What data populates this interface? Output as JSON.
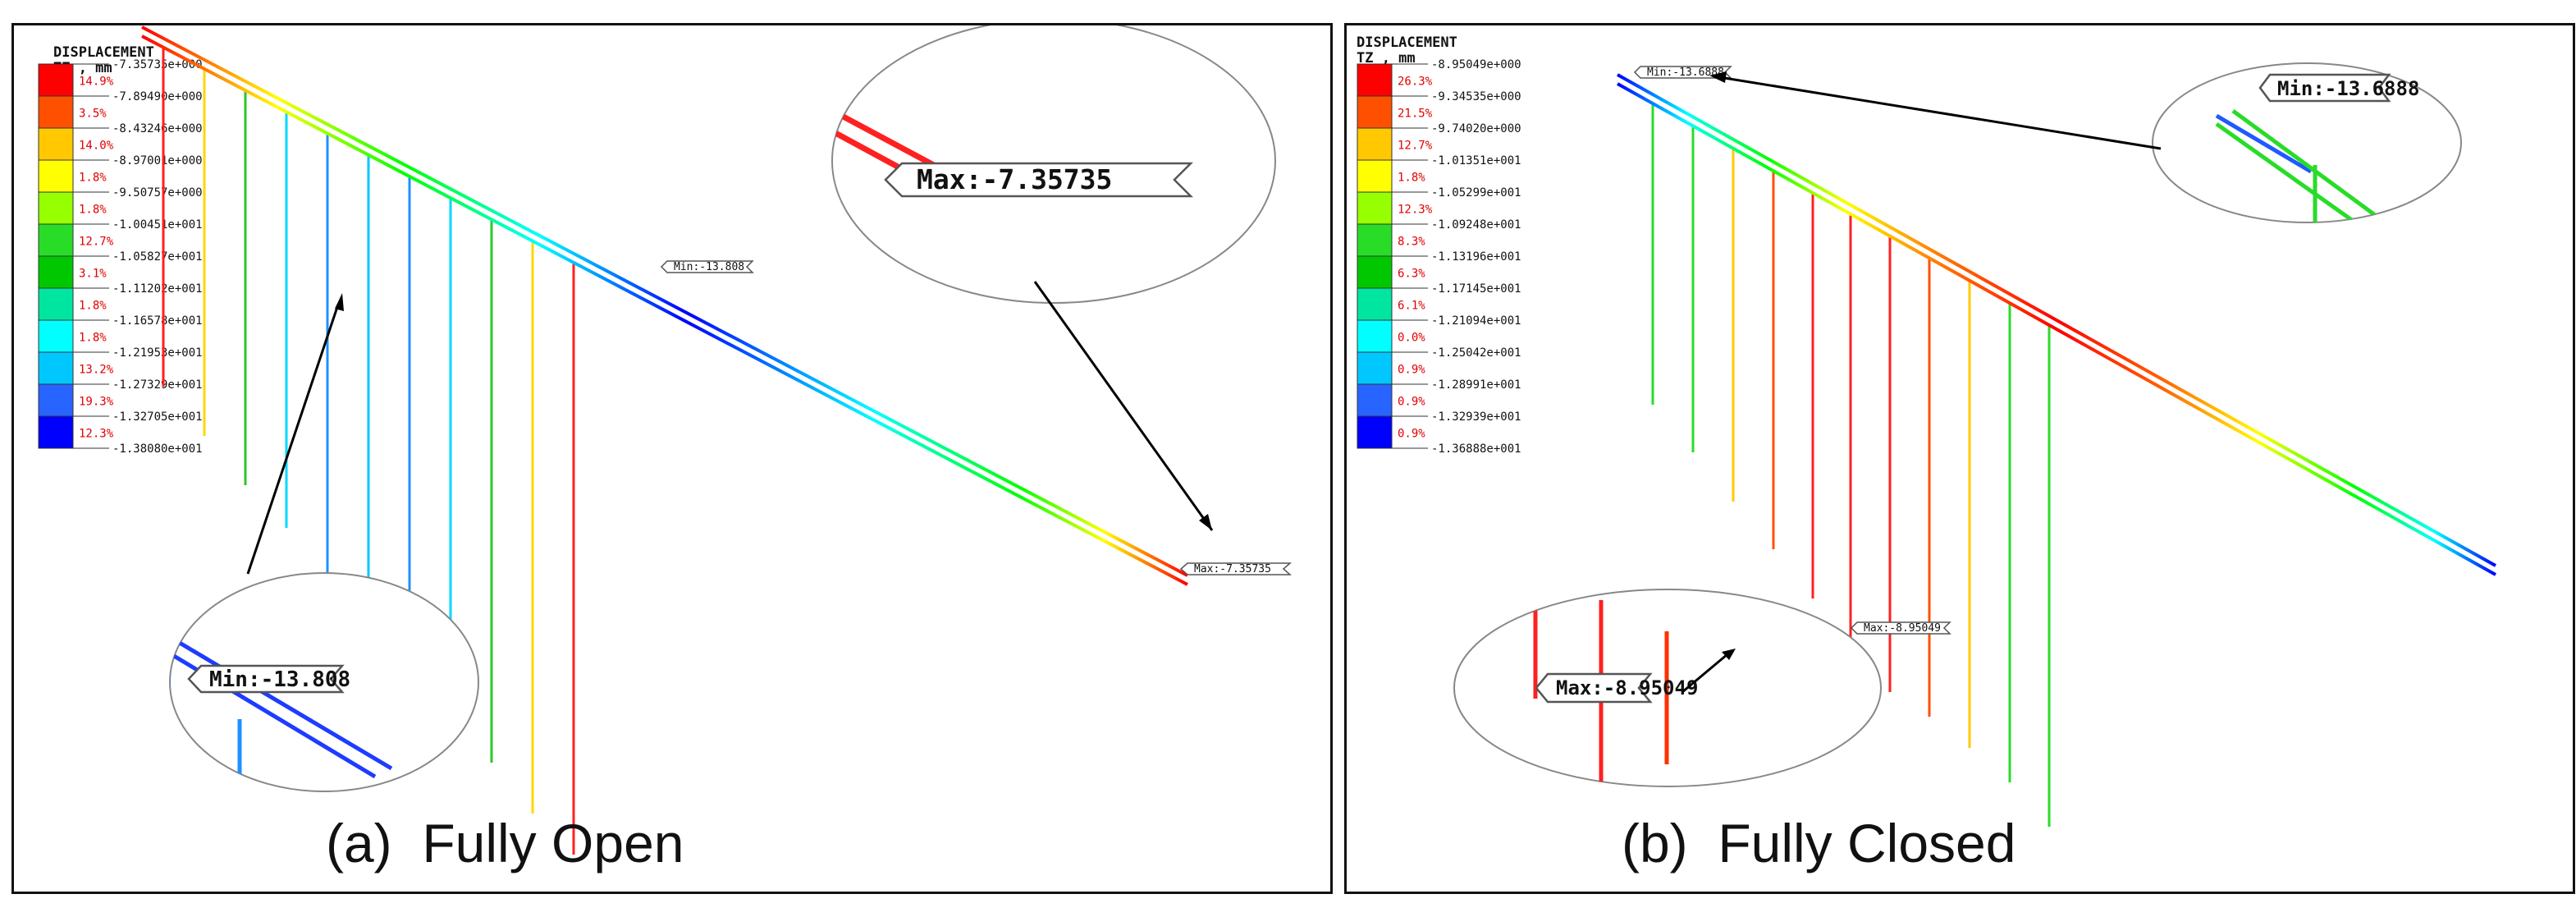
{
  "panels": [
    {
      "id": "a",
      "legend": {
        "title": "DISPLACEMENT",
        "subtitle": "TZ , mm",
        "colors": [
          "#ff0000",
          "#ff5000",
          "#ffc800",
          "#ffff00",
          "#96ff00",
          "#28dc28",
          "#00c800",
          "#00e6a0",
          "#00ffff",
          "#00c8ff",
          "#2864ff",
          "#0000ff"
        ],
        "percents": [
          "14.9%",
          "3.5%",
          "14.0%",
          "1.8%",
          "1.8%",
          "12.7%",
          "3.1%",
          "1.8%",
          "1.8%",
          "13.2%",
          "19.3%",
          "12.3%"
        ],
        "ticks": [
          "-7.35735e+000",
          "-7.89490e+000",
          "-8.43246e+000",
          "-8.97001e+000",
          "-9.50757e+000",
          "-1.00451e+001",
          "-1.05827e+001",
          "-1.11202e+001",
          "-1.16578e+001",
          "-1.21953e+001",
          "-1.27329e+001",
          "-1.32705e+001",
          "-1.38080e+001"
        ]
      },
      "min_label": "Min:-13.808",
      "max_label": "Max:-7.35735",
      "zoom_label": "Max:-7.35735",
      "zoom2_label": "Min:-13.808",
      "caption": "(a)  Fully Open"
    },
    {
      "id": "b",
      "legend": {
        "title": "DISPLACEMENT",
        "subtitle": "TZ , mm",
        "colors": [
          "#ff0000",
          "#ff5000",
          "#ffc800",
          "#ffff00",
          "#96ff00",
          "#28dc28",
          "#00c800",
          "#00e6a0",
          "#00ffff",
          "#00c8ff",
          "#2864ff",
          "#0000ff"
        ],
        "percents": [
          "26.3%",
          "21.5%",
          "12.7%",
          "1.8%",
          "12.3%",
          "8.3%",
          "6.3%",
          "6.1%",
          "0.0%",
          "0.9%",
          "0.9%",
          "0.9%"
        ],
        "ticks": [
          "-8.95049e+000",
          "-9.34535e+000",
          "-9.74020e+000",
          "-1.01351e+001",
          "-1.05299e+001",
          "-1.09248e+001",
          "-1.13196e+001",
          "-1.17145e+001",
          "-1.21094e+001",
          "-1.25042e+001",
          "-1.28991e+001",
          "-1.32939e+001",
          "-1.36888e+001"
        ]
      },
      "min_label": "Min:-13.6888",
      "max_label": "Max:-8.95049",
      "zoom_label": "Min:-13.6888",
      "zoom2_label": "Max:-8.95049",
      "caption": "(b)  Fully Closed"
    }
  ]
}
